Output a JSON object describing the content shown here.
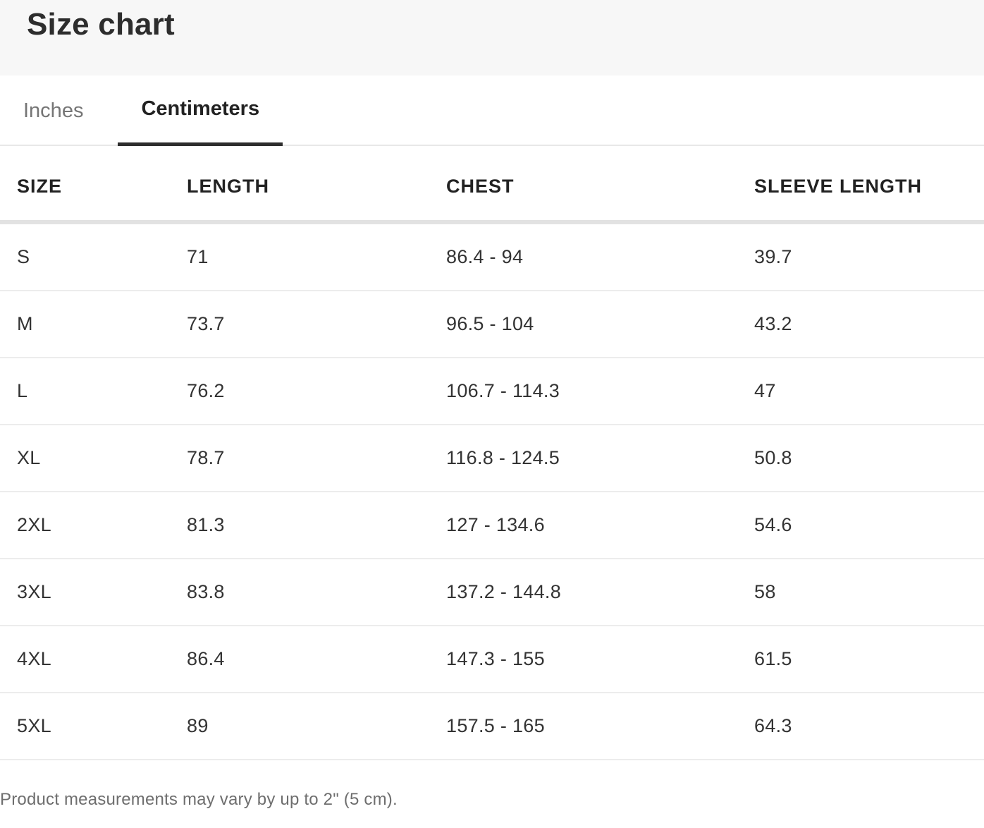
{
  "page": {
    "title": "Size chart",
    "footer_note": "Product measurements may vary by up to 2\" (5 cm)."
  },
  "tabs": [
    {
      "label": "Inches",
      "active": false
    },
    {
      "label": "Centimeters",
      "active": true
    }
  ],
  "chart_data": {
    "type": "table",
    "title": "Size chart",
    "active_unit": "Centimeters",
    "columns": [
      "SIZE",
      "LENGTH",
      "CHEST",
      "SLEEVE LENGTH"
    ],
    "rows": [
      [
        "S",
        "71",
        "86.4 - 94",
        "39.7"
      ],
      [
        "M",
        "73.7",
        "96.5 - 104",
        "43.2"
      ],
      [
        "L",
        "76.2",
        "106.7 - 114.3",
        "47"
      ],
      [
        "XL",
        "78.7",
        "116.8 - 124.5",
        "50.8"
      ],
      [
        "2XL",
        "81.3",
        "127 - 134.6",
        "54.6"
      ],
      [
        "3XL",
        "83.8",
        "137.2 - 144.8",
        "58"
      ],
      [
        "4XL",
        "86.4",
        "147.3 - 155",
        "61.5"
      ],
      [
        "5XL",
        "89",
        "157.5 - 165",
        "64.3"
      ]
    ]
  },
  "colors": {
    "header_bg": "#f7f7f7",
    "text_primary": "#2d2d2d",
    "text_secondary": "#757575",
    "tab_underline": "#2d2d2d",
    "divider_heavy": "#e2e2e2",
    "divider_light": "#ececec",
    "footer_text": "#6e6e6e"
  }
}
